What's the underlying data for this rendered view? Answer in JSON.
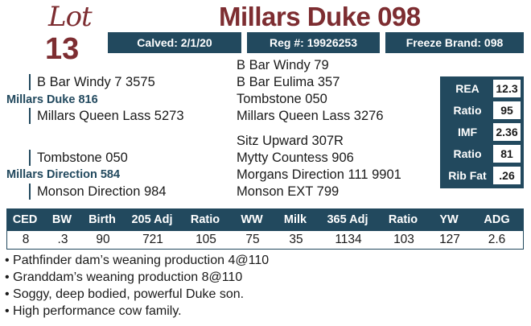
{
  "lot": {
    "word": "Lot",
    "number": "13"
  },
  "title": "Millars Duke 098",
  "info": {
    "calved": "Calved: 2/1/20",
    "reg": "Reg #: 19926253",
    "freeze_brand": "Freeze Brand: 098"
  },
  "pedigree": {
    "sire": "Millars Duke 816",
    "sire_sire": "B Bar Windy 7 3575",
    "sire_dam": "Millars Queen Lass 5273",
    "sire_sire_sire": "B Bar Windy 79",
    "sire_sire_dam": "B Bar Eulima 357",
    "sire_dam_sire": "Tombstone 050",
    "sire_dam_dam": "Millars Queen Lass 3276",
    "dam": "Millars Direction 584",
    "dam_sire": "Tombstone 050",
    "dam_dam": "Monson Direction 984",
    "dam_sire_sire": "Sitz Upward 307R",
    "dam_sire_dam": "Mytty Countess 906",
    "dam_dam_sire": "Morgans Direction 111 9901",
    "dam_dam_dam": "Monson EXT 799"
  },
  "carcass": [
    {
      "label": "REA",
      "value": "12.3"
    },
    {
      "label": "Ratio",
      "value": "95"
    },
    {
      "label": "IMF",
      "value": "2.36"
    },
    {
      "label": "Ratio",
      "value": "81"
    },
    {
      "label": "Rib Fat",
      "value": ".26"
    }
  ],
  "performance": {
    "headers": [
      "CED",
      "BW",
      "Birth",
      "205 Adj",
      "Ratio",
      "WW",
      "Milk",
      "365 Adj",
      "Ratio",
      "YW",
      "ADG"
    ],
    "values": [
      "8",
      ".3",
      "90",
      "721",
      "105",
      "75",
      "35",
      "1134",
      "103",
      "127",
      "2.6"
    ]
  },
  "notes": [
    "• Pathfinder dam’s weaning production 4@110",
    "• Granddam’s weaning production 8@110",
    "• Soggy, deep bodied, powerful Duke son.",
    "• High performance cow family."
  ],
  "colors": {
    "navy": "#22495e",
    "maroon": "#7d2d31"
  }
}
